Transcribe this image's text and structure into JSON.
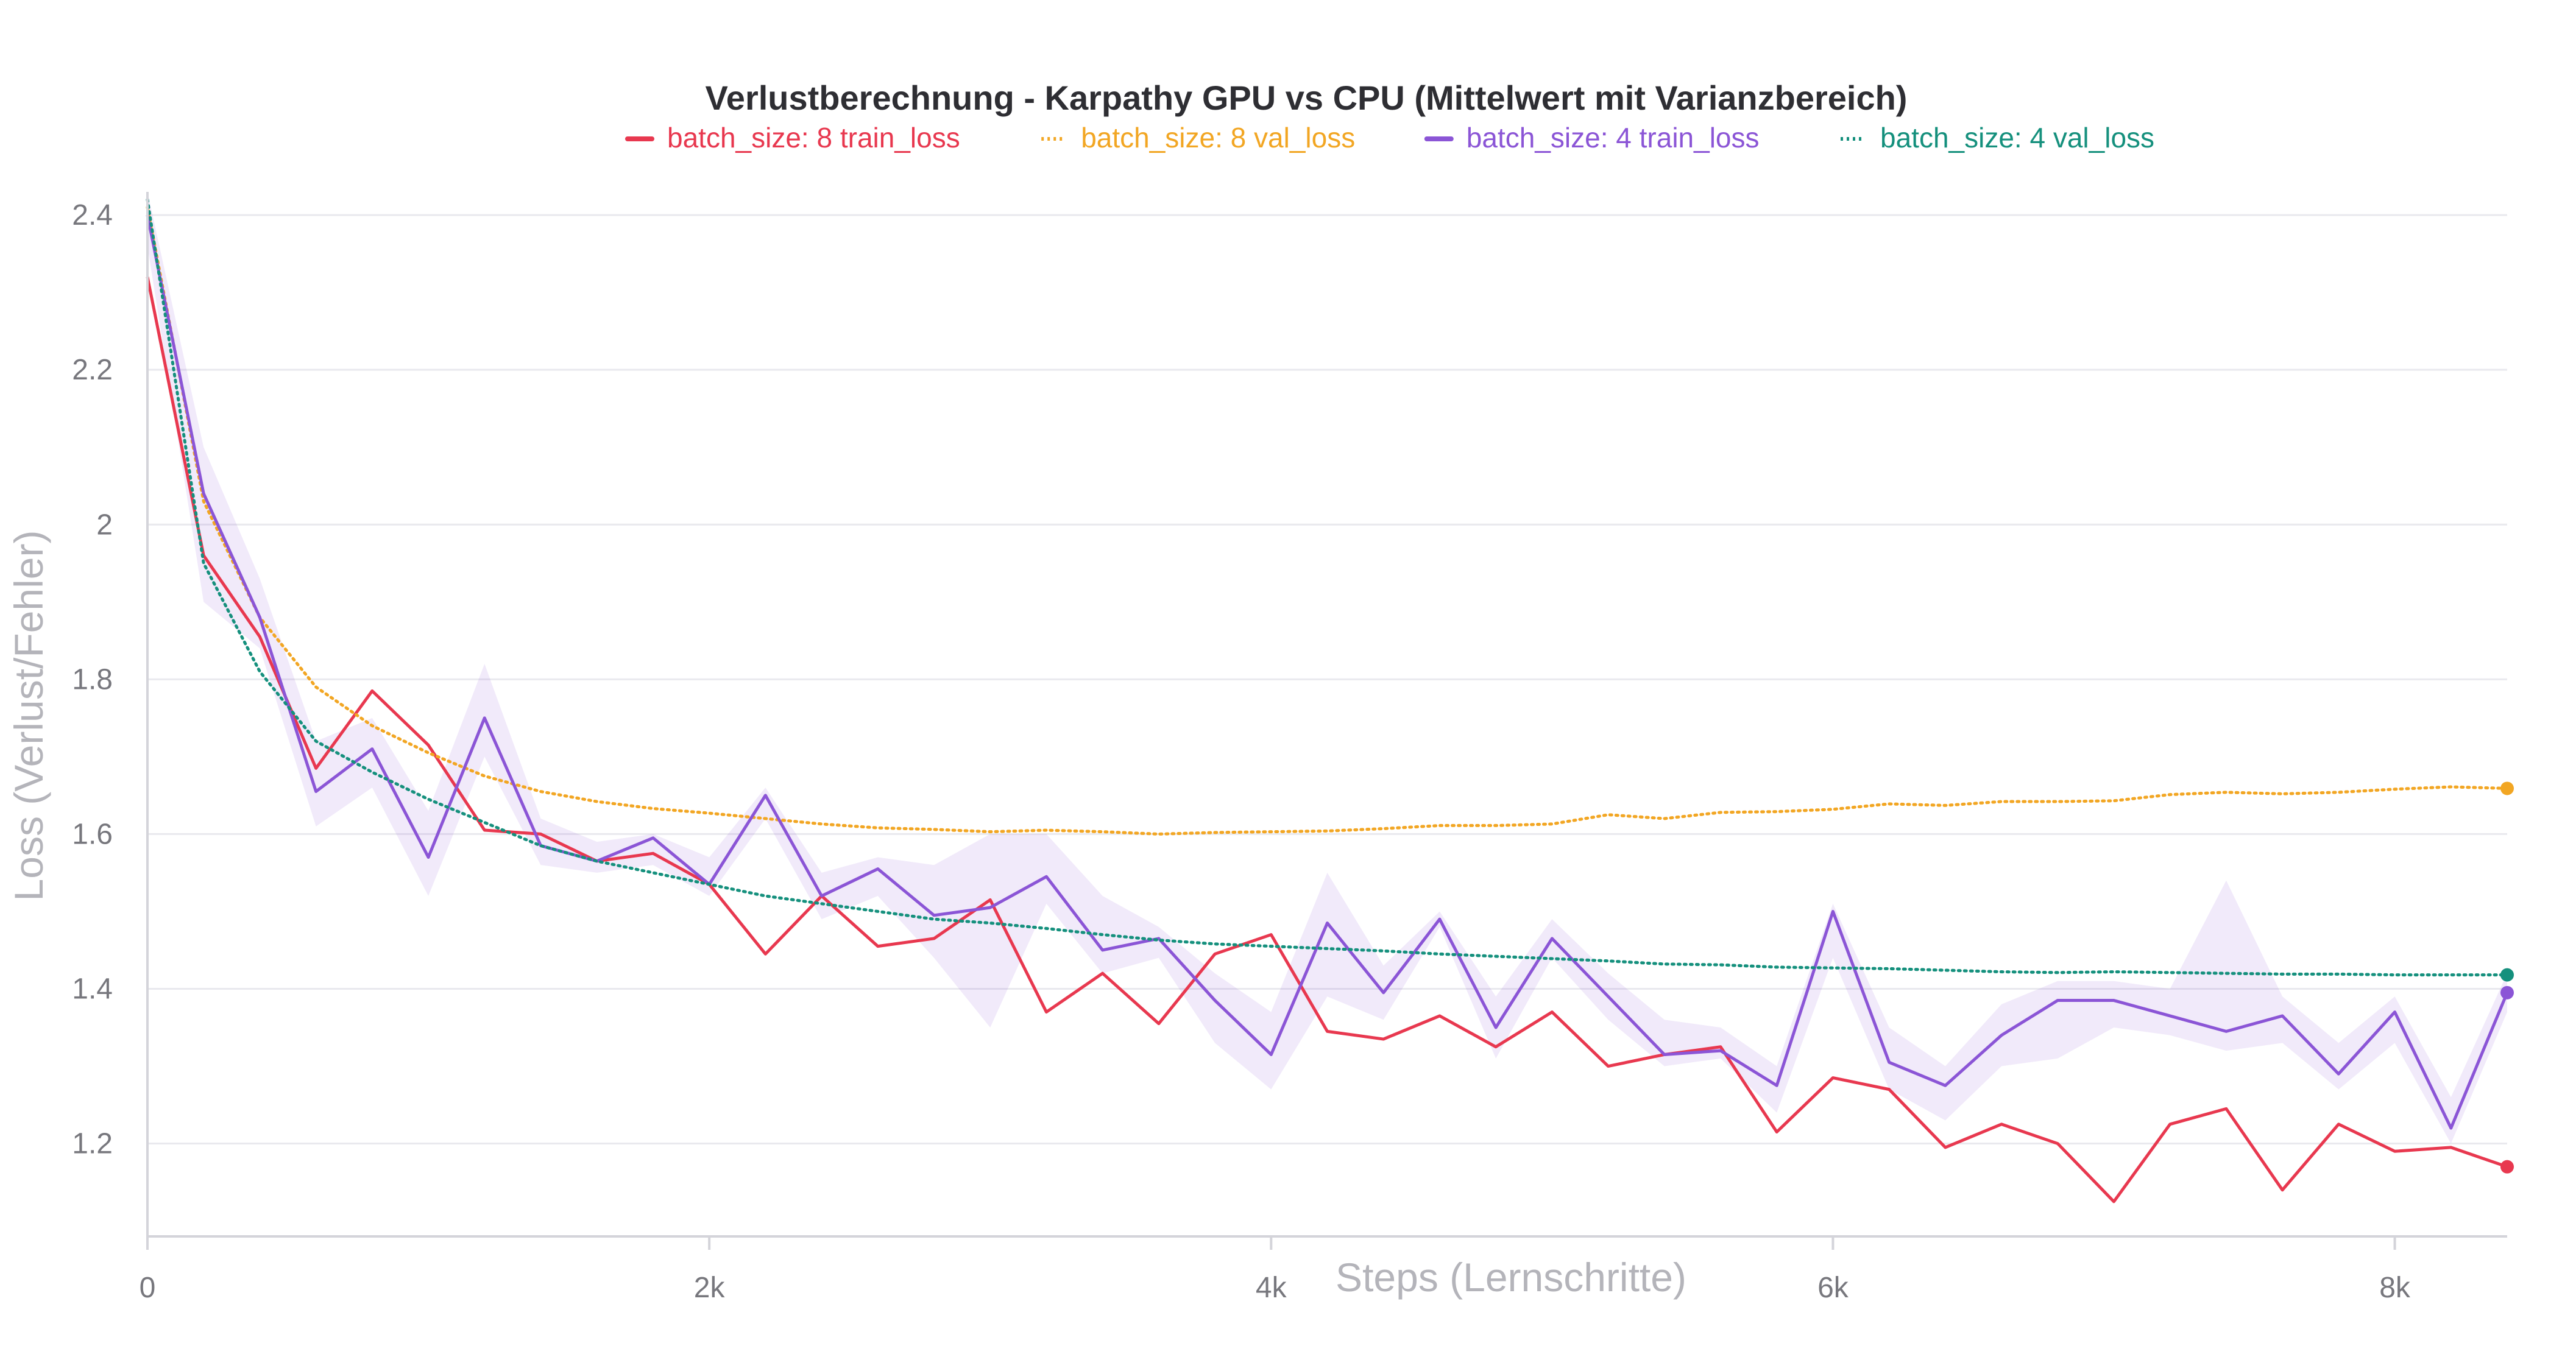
{
  "chart_data": {
    "type": "line",
    "title": "Verlustberechnung - Karpathy GPU vs CPU (Mittelwert mit Varianzbereich)",
    "xlabel": "Steps (Lernschritte)",
    "ylabel": "Loss (Verlust/Fehler)",
    "xlim": [
      0,
      8400
    ],
    "ylim": [
      1.08,
      2.43
    ],
    "x_ticks": [
      {
        "value": 0,
        "label": "0"
      },
      {
        "value": 2000,
        "label": "2k"
      },
      {
        "value": 4000,
        "label": "4k"
      },
      {
        "value": 6000,
        "label": "6k"
      },
      {
        "value": 8000,
        "label": "8k"
      }
    ],
    "y_ticks": [
      {
        "value": 1.2,
        "label": "1.2"
      },
      {
        "value": 1.4,
        "label": "1.4"
      },
      {
        "value": 1.6,
        "label": "1.6"
      },
      {
        "value": 1.8,
        "label": "1.8"
      },
      {
        "value": 2.0,
        "label": "2"
      },
      {
        "value": 2.2,
        "label": "2.2"
      },
      {
        "value": 2.4,
        "label": "2.4"
      }
    ],
    "grid": true,
    "legend_position": "top-center",
    "series": [
      {
        "name": "batch_size: 8 train_loss",
        "color": "#e8384f",
        "style": "solid",
        "x": [
          0,
          200,
          400,
          600,
          800,
          1000,
          1200,
          1400,
          1600,
          1800,
          2000,
          2200,
          2400,
          2600,
          2800,
          3000,
          3200,
          3400,
          3600,
          3800,
          4000,
          4200,
          4400,
          4600,
          4800,
          5000,
          5200,
          5400,
          5600,
          5800,
          6000,
          6200,
          6400,
          6600,
          6800,
          7000,
          7200,
          7400,
          7600,
          7800,
          8000,
          8200,
          8400
        ],
        "y": [
          2.32,
          1.96,
          1.855,
          1.685,
          1.785,
          1.715,
          1.605,
          1.6,
          1.565,
          1.575,
          1.535,
          1.445,
          1.52,
          1.455,
          1.465,
          1.515,
          1.37,
          1.42,
          1.355,
          1.445,
          1.47,
          1.345,
          1.335,
          1.365,
          1.325,
          1.37,
          1.3,
          1.315,
          1.325,
          1.215,
          1.285,
          1.27,
          1.195,
          1.225,
          1.2,
          1.125,
          1.225,
          1.245,
          1.14,
          1.225,
          1.19,
          1.195,
          1.17
        ]
      },
      {
        "name": "batch_size: 8 val_loss",
        "color": "#f2a623",
        "style": "dotted",
        "x": [
          0,
          200,
          400,
          600,
          800,
          1000,
          1200,
          1400,
          1600,
          1800,
          2000,
          2200,
          2400,
          2600,
          2800,
          3000,
          3200,
          3400,
          3600,
          3800,
          4000,
          4200,
          4400,
          4600,
          4800,
          5000,
          5200,
          5400,
          5600,
          5800,
          6000,
          6200,
          6400,
          6600,
          6800,
          7000,
          7200,
          7400,
          7600,
          7800,
          8000,
          8200,
          8400
        ],
        "y": [
          2.41,
          2.03,
          1.88,
          1.79,
          1.74,
          1.705,
          1.675,
          1.655,
          1.642,
          1.633,
          1.627,
          1.62,
          1.613,
          1.608,
          1.606,
          1.603,
          1.605,
          1.603,
          1.6,
          1.602,
          1.603,
          1.604,
          1.607,
          1.611,
          1.611,
          1.613,
          1.625,
          1.62,
          1.628,
          1.629,
          1.632,
          1.639,
          1.637,
          1.642,
          1.642,
          1.643,
          1.651,
          1.654,
          1.652,
          1.654,
          1.658,
          1.661,
          1.659
        ]
      },
      {
        "name": "batch_size: 4 train_loss",
        "color": "#8b55d6",
        "style": "solid",
        "x": [
          0,
          200,
          400,
          600,
          800,
          1000,
          1200,
          1400,
          1600,
          1800,
          2000,
          2200,
          2400,
          2600,
          2800,
          3000,
          3200,
          3400,
          3600,
          3800,
          4000,
          4200,
          4400,
          4600,
          4800,
          5000,
          5200,
          5400,
          5600,
          5800,
          6000,
          6200,
          6400,
          6600,
          6800,
          7000,
          7200,
          7400,
          7600,
          7800,
          8000,
          8200,
          8400
        ],
        "y": [
          2.4,
          2.04,
          1.88,
          1.655,
          1.71,
          1.57,
          1.75,
          1.585,
          1.565,
          1.595,
          1.535,
          1.65,
          1.52,
          1.555,
          1.495,
          1.505,
          1.545,
          1.45,
          1.465,
          1.385,
          1.315,
          1.485,
          1.395,
          1.49,
          1.35,
          1.465,
          1.39,
          1.315,
          1.32,
          1.275,
          1.5,
          1.305,
          1.275,
          1.34,
          1.385,
          1.385,
          1.365,
          1.345,
          1.365,
          1.29,
          1.37,
          1.22,
          1.395
        ],
        "band_upper": [
          2.43,
          2.1,
          1.93,
          1.72,
          1.75,
          1.63,
          1.82,
          1.62,
          1.59,
          1.6,
          1.57,
          1.66,
          1.55,
          1.57,
          1.56,
          1.6,
          1.6,
          1.52,
          1.48,
          1.42,
          1.37,
          1.55,
          1.43,
          1.5,
          1.39,
          1.49,
          1.42,
          1.36,
          1.35,
          1.3,
          1.51,
          1.35,
          1.3,
          1.38,
          1.41,
          1.41,
          1.4,
          1.54,
          1.39,
          1.33,
          1.39,
          1.26,
          1.42
        ],
        "band_lower": [
          2.36,
          1.9,
          1.84,
          1.61,
          1.66,
          1.52,
          1.7,
          1.56,
          1.55,
          1.56,
          1.52,
          1.62,
          1.49,
          1.52,
          1.44,
          1.35,
          1.51,
          1.42,
          1.44,
          1.33,
          1.27,
          1.39,
          1.36,
          1.48,
          1.31,
          1.44,
          1.36,
          1.3,
          1.31,
          1.24,
          1.44,
          1.27,
          1.23,
          1.3,
          1.31,
          1.35,
          1.34,
          1.32,
          1.33,
          1.27,
          1.33,
          1.2,
          1.37
        ]
      },
      {
        "name": "batch_size: 4 val_loss",
        "color": "#15907d",
        "style": "dotted",
        "x": [
          0,
          200,
          400,
          600,
          800,
          1000,
          1200,
          1400,
          1600,
          1800,
          2000,
          2200,
          2400,
          2600,
          2800,
          3000,
          3200,
          3400,
          3600,
          3800,
          4000,
          4200,
          4400,
          4600,
          4800,
          5000,
          5200,
          5400,
          5600,
          5800,
          6000,
          6200,
          6400,
          6600,
          6800,
          7000,
          7200,
          7400,
          7600,
          7800,
          8000,
          8200,
          8400
        ],
        "y": [
          2.42,
          1.95,
          1.81,
          1.72,
          1.68,
          1.645,
          1.615,
          1.585,
          1.565,
          1.55,
          1.535,
          1.52,
          1.51,
          1.5,
          1.49,
          1.485,
          1.478,
          1.47,
          1.463,
          1.458,
          1.455,
          1.452,
          1.449,
          1.445,
          1.442,
          1.439,
          1.436,
          1.432,
          1.431,
          1.428,
          1.427,
          1.426,
          1.424,
          1.422,
          1.421,
          1.422,
          1.421,
          1.42,
          1.419,
          1.419,
          1.418,
          1.418,
          1.418
        ]
      }
    ]
  }
}
